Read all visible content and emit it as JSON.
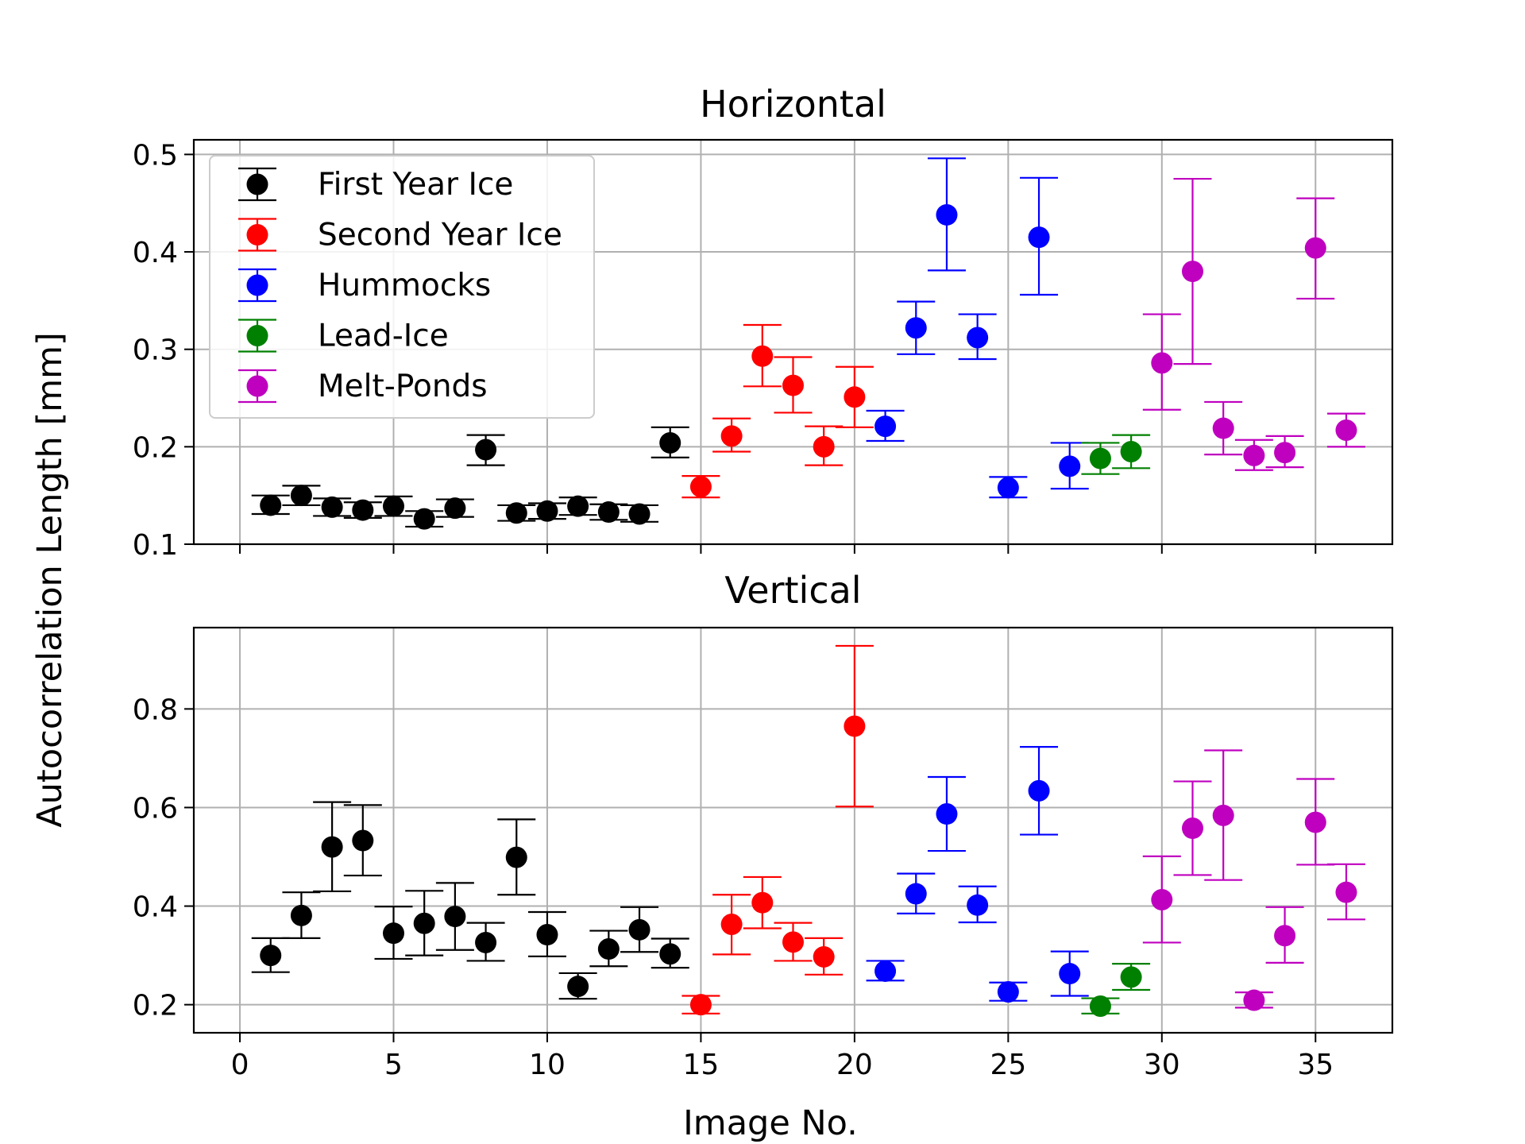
{
  "chart_data": {
    "type": "scatter",
    "ylabel": "Autocorrelation Length [mm]",
    "xlabel": "Image No.",
    "x_range": [
      -1.5,
      37.5
    ],
    "x_ticks": [
      "0",
      "5",
      "10",
      "15",
      "20",
      "25",
      "30",
      "35"
    ],
    "grid": true,
    "legend_placement": "upper-left",
    "series": [
      {
        "name": "First Year Ice",
        "color": "#000000"
      },
      {
        "name": "Second Year Ice",
        "color": "#ff0000"
      },
      {
        "name": "Hummocks",
        "color": "#0000ff"
      },
      {
        "name": "Lead-Ice",
        "color": "#008000"
      },
      {
        "name": "Melt-Ponds",
        "color": "#bf00bf"
      }
    ],
    "panels": [
      {
        "title": "Horizontal",
        "ylim": [
          0.1,
          0.515
        ],
        "y_ticks": [
          "0.1",
          "0.2",
          "0.3",
          "0.4",
          "0.5"
        ],
        "points": [
          {
            "x": 1,
            "y": 0.14,
            "lo": 0.131,
            "hi": 0.15,
            "s": 0
          },
          {
            "x": 2,
            "y": 0.15,
            "lo": 0.14,
            "hi": 0.16,
            "s": 0
          },
          {
            "x": 3,
            "y": 0.138,
            "lo": 0.129,
            "hi": 0.147,
            "s": 0
          },
          {
            "x": 4,
            "y": 0.135,
            "lo": 0.127,
            "hi": 0.143,
            "s": 0
          },
          {
            "x": 5,
            "y": 0.139,
            "lo": 0.129,
            "hi": 0.149,
            "s": 0
          },
          {
            "x": 6,
            "y": 0.126,
            "lo": 0.118,
            "hi": 0.134,
            "s": 0
          },
          {
            "x": 7,
            "y": 0.137,
            "lo": 0.128,
            "hi": 0.146,
            "s": 0
          },
          {
            "x": 8,
            "y": 0.197,
            "lo": 0.181,
            "hi": 0.212,
            "s": 0
          },
          {
            "x": 9,
            "y": 0.132,
            "lo": 0.124,
            "hi": 0.14,
            "s": 0
          },
          {
            "x": 10,
            "y": 0.134,
            "lo": 0.126,
            "hi": 0.142,
            "s": 0
          },
          {
            "x": 11,
            "y": 0.139,
            "lo": 0.13,
            "hi": 0.148,
            "s": 0
          },
          {
            "x": 12,
            "y": 0.133,
            "lo": 0.125,
            "hi": 0.141,
            "s": 0
          },
          {
            "x": 13,
            "y": 0.131,
            "lo": 0.123,
            "hi": 0.14,
            "s": 0
          },
          {
            "x": 14,
            "y": 0.204,
            "lo": 0.189,
            "hi": 0.22,
            "s": 0
          },
          {
            "x": 15,
            "y": 0.159,
            "lo": 0.148,
            "hi": 0.17,
            "s": 1
          },
          {
            "x": 16,
            "y": 0.211,
            "lo": 0.195,
            "hi": 0.229,
            "s": 1
          },
          {
            "x": 17,
            "y": 0.293,
            "lo": 0.262,
            "hi": 0.325,
            "s": 1
          },
          {
            "x": 18,
            "y": 0.263,
            "lo": 0.235,
            "hi": 0.292,
            "s": 1
          },
          {
            "x": 19,
            "y": 0.2,
            "lo": 0.181,
            "hi": 0.221,
            "s": 1
          },
          {
            "x": 20,
            "y": 0.251,
            "lo": 0.22,
            "hi": 0.282,
            "s": 1
          },
          {
            "x": 21,
            "y": 0.221,
            "lo": 0.206,
            "hi": 0.237,
            "s": 2
          },
          {
            "x": 22,
            "y": 0.322,
            "lo": 0.295,
            "hi": 0.349,
            "s": 2
          },
          {
            "x": 23,
            "y": 0.438,
            "lo": 0.381,
            "hi": 0.496,
            "s": 2
          },
          {
            "x": 24,
            "y": 0.312,
            "lo": 0.29,
            "hi": 0.336,
            "s": 2
          },
          {
            "x": 25,
            "y": 0.158,
            "lo": 0.148,
            "hi": 0.169,
            "s": 2
          },
          {
            "x": 26,
            "y": 0.415,
            "lo": 0.356,
            "hi": 0.476,
            "s": 2
          },
          {
            "x": 27,
            "y": 0.18,
            "lo": 0.157,
            "hi": 0.204,
            "s": 2
          },
          {
            "x": 28,
            "y": 0.188,
            "lo": 0.172,
            "hi": 0.204,
            "s": 3
          },
          {
            "x": 29,
            "y": 0.195,
            "lo": 0.178,
            "hi": 0.212,
            "s": 3
          },
          {
            "x": 30,
            "y": 0.286,
            "lo": 0.238,
            "hi": 0.336,
            "s": 4
          },
          {
            "x": 31,
            "y": 0.38,
            "lo": 0.285,
            "hi": 0.475,
            "s": 4
          },
          {
            "x": 32,
            "y": 0.219,
            "lo": 0.192,
            "hi": 0.246,
            "s": 4
          },
          {
            "x": 33,
            "y": 0.191,
            "lo": 0.176,
            "hi": 0.207,
            "s": 4
          },
          {
            "x": 34,
            "y": 0.194,
            "lo": 0.179,
            "hi": 0.211,
            "s": 4
          },
          {
            "x": 35,
            "y": 0.404,
            "lo": 0.352,
            "hi": 0.455,
            "s": 4
          },
          {
            "x": 36,
            "y": 0.217,
            "lo": 0.2,
            "hi": 0.234,
            "s": 4
          }
        ]
      },
      {
        "title": "Vertical",
        "ylim": [
          0.143,
          0.965
        ],
        "y_ticks": [
          "0.2",
          "0.4",
          "0.6",
          "0.8"
        ],
        "points": [
          {
            "x": 1,
            "y": 0.3,
            "lo": 0.266,
            "hi": 0.335,
            "s": 0
          },
          {
            "x": 2,
            "y": 0.381,
            "lo": 0.335,
            "hi": 0.428,
            "s": 0
          },
          {
            "x": 3,
            "y": 0.52,
            "lo": 0.43,
            "hi": 0.611,
            "s": 0
          },
          {
            "x": 4,
            "y": 0.533,
            "lo": 0.462,
            "hi": 0.605,
            "s": 0
          },
          {
            "x": 5,
            "y": 0.345,
            "lo": 0.293,
            "hi": 0.399,
            "s": 0
          },
          {
            "x": 6,
            "y": 0.365,
            "lo": 0.3,
            "hi": 0.431,
            "s": 0
          },
          {
            "x": 7,
            "y": 0.379,
            "lo": 0.311,
            "hi": 0.447,
            "s": 0
          },
          {
            "x": 8,
            "y": 0.326,
            "lo": 0.289,
            "hi": 0.366,
            "s": 0
          },
          {
            "x": 9,
            "y": 0.499,
            "lo": 0.423,
            "hi": 0.576,
            "s": 0
          },
          {
            "x": 10,
            "y": 0.342,
            "lo": 0.298,
            "hi": 0.388,
            "s": 0
          },
          {
            "x": 11,
            "y": 0.237,
            "lo": 0.212,
            "hi": 0.264,
            "s": 0
          },
          {
            "x": 12,
            "y": 0.313,
            "lo": 0.278,
            "hi": 0.35,
            "s": 0
          },
          {
            "x": 13,
            "y": 0.352,
            "lo": 0.307,
            "hi": 0.398,
            "s": 0
          },
          {
            "x": 14,
            "y": 0.303,
            "lo": 0.275,
            "hi": 0.334,
            "s": 0
          },
          {
            "x": 15,
            "y": 0.2,
            "lo": 0.182,
            "hi": 0.218,
            "s": 1
          },
          {
            "x": 16,
            "y": 0.363,
            "lo": 0.302,
            "hi": 0.423,
            "s": 1
          },
          {
            "x": 17,
            "y": 0.407,
            "lo": 0.355,
            "hi": 0.459,
            "s": 1
          },
          {
            "x": 18,
            "y": 0.327,
            "lo": 0.289,
            "hi": 0.366,
            "s": 1
          },
          {
            "x": 19,
            "y": 0.297,
            "lo": 0.261,
            "hi": 0.335,
            "s": 1
          },
          {
            "x": 20,
            "y": 0.765,
            "lo": 0.602,
            "hi": 0.928,
            "s": 1
          },
          {
            "x": 21,
            "y": 0.268,
            "lo": 0.249,
            "hi": 0.289,
            "s": 2
          },
          {
            "x": 22,
            "y": 0.425,
            "lo": 0.385,
            "hi": 0.466,
            "s": 2
          },
          {
            "x": 23,
            "y": 0.587,
            "lo": 0.512,
            "hi": 0.662,
            "s": 2
          },
          {
            "x": 24,
            "y": 0.402,
            "lo": 0.367,
            "hi": 0.44,
            "s": 2
          },
          {
            "x": 25,
            "y": 0.226,
            "lo": 0.208,
            "hi": 0.245,
            "s": 2
          },
          {
            "x": 26,
            "y": 0.634,
            "lo": 0.545,
            "hi": 0.723,
            "s": 2
          },
          {
            "x": 27,
            "y": 0.263,
            "lo": 0.218,
            "hi": 0.308,
            "s": 2
          },
          {
            "x": 28,
            "y": 0.197,
            "lo": 0.182,
            "hi": 0.213,
            "s": 3
          },
          {
            "x": 29,
            "y": 0.256,
            "lo": 0.23,
            "hi": 0.283,
            "s": 3
          },
          {
            "x": 30,
            "y": 0.413,
            "lo": 0.326,
            "hi": 0.501,
            "s": 4
          },
          {
            "x": 31,
            "y": 0.558,
            "lo": 0.463,
            "hi": 0.653,
            "s": 4
          },
          {
            "x": 32,
            "y": 0.584,
            "lo": 0.453,
            "hi": 0.716,
            "s": 4
          },
          {
            "x": 33,
            "y": 0.209,
            "lo": 0.194,
            "hi": 0.225,
            "s": 4
          },
          {
            "x": 34,
            "y": 0.34,
            "lo": 0.285,
            "hi": 0.398,
            "s": 4
          },
          {
            "x": 35,
            "y": 0.57,
            "lo": 0.484,
            "hi": 0.658,
            "s": 4
          },
          {
            "x": 36,
            "y": 0.428,
            "lo": 0.373,
            "hi": 0.485,
            "s": 4
          }
        ]
      }
    ]
  }
}
